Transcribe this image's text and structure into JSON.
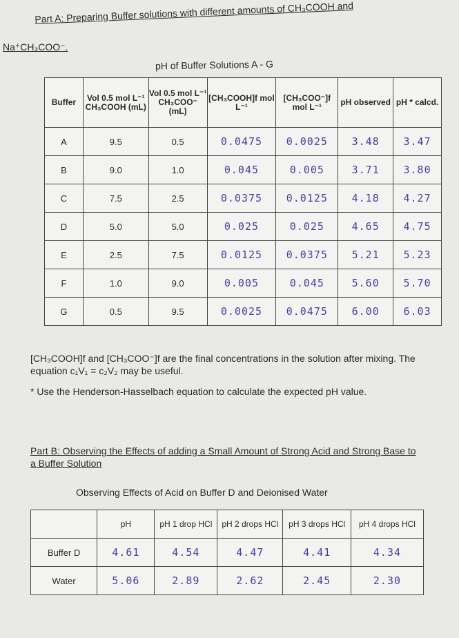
{
  "partA": {
    "title_line1": "Part A: Preparing Buffer solutions with different amounts of CH₃COOH and",
    "title_line2": "Na⁺CH₃COO⁻.",
    "table_title": "pH of Buffer Solutions A - G"
  },
  "table1": {
    "headers": [
      "Buffer",
      "Vol 0.5 mol L⁻¹ CH₃COOH (mL)",
      "Vol 0.5 mol L⁻¹ CH₃COO⁻ (mL)",
      "[CH₃COOH]f mol L⁻¹",
      "[CH₃COO⁻]f mol L⁻¹",
      "pH observed",
      "pH * calcd."
    ],
    "rows": [
      [
        "A",
        "9.5",
        "0.5",
        "0.0475",
        "0.0025",
        "3.48",
        "3.47"
      ],
      [
        "B",
        "9.0",
        "1.0",
        "0.045",
        "0.005",
        "3.71",
        "3.80"
      ],
      [
        "C",
        "7.5",
        "2.5",
        "0.0375",
        "0.0125",
        "4.18",
        "4.27"
      ],
      [
        "D",
        "5.0",
        "5.0",
        "0.025",
        "0.025",
        "4.65",
        "4.75"
      ],
      [
        "E",
        "2.5",
        "7.5",
        "0.0125",
        "0.0375",
        "5.21",
        "5.23"
      ],
      [
        "F",
        "1.0",
        "9.0",
        "0.005",
        "0.045",
        "5.60",
        "5.70"
      ],
      [
        "G",
        "0.5",
        "9.5",
        "0.0025",
        "0.0475",
        "6.00",
        "6.03"
      ]
    ]
  },
  "notes": {
    "note1": "[CH₃COOH]f and [CH₃COO⁻]f are the final concentrations in the solution after mixing. The equation c₁V₁ = c₂V₂ may be useful.",
    "note2": "* Use the Henderson-Hasselbach equation to calculate the expected pH value."
  },
  "partB": {
    "title": "Part B: Observing the Effects of adding a Small Amount of Strong Acid and Strong Base to a Buffer Solution",
    "table_title": "Observing Effects of Acid on Buffer D and Deionised Water"
  },
  "table2": {
    "headers": [
      "",
      "pH",
      "pH 1 drop HCl",
      "pH 2 drops HCl",
      "pH 3 drops HCl",
      "pH 4 drops HCl"
    ],
    "rows": [
      [
        "Buffer D",
        "4.61",
        "4.54",
        "4.47",
        "4.41",
        "4.34"
      ],
      [
        "Water",
        "5.06",
        "2.89",
        "2.62",
        "2.45",
        "2.30"
      ]
    ]
  }
}
